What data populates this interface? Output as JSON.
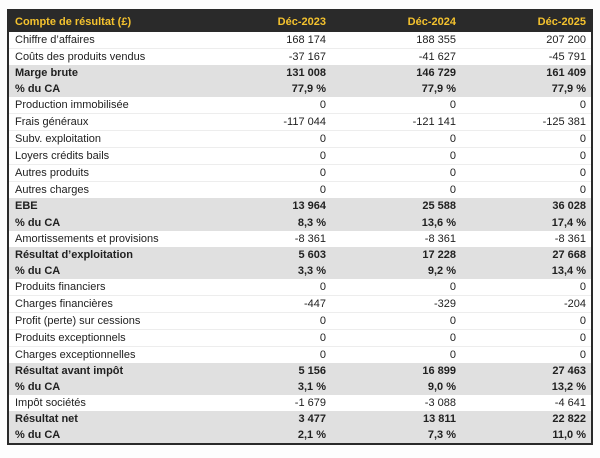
{
  "colors": {
    "header_bg": "#2a2a2a",
    "header_text": "#f4c22e",
    "band_bg": "#e0e0e0",
    "row_separator": "#ededed",
    "body_text": "#212121",
    "table_border": "#2a2a2a",
    "page_bg": "#fdfdfd"
  },
  "chart_data": {
    "type": "table",
    "title": "Compte de résultat (£)",
    "columns": [
      "Déc-2023",
      "Déc-2024",
      "Déc-2025"
    ],
    "rows": [
      {
        "label": "Chiffre d’affaires",
        "values": [
          "168 174",
          "188 355",
          "207 200"
        ],
        "emphasis": false
      },
      {
        "label": "Coûts des produits vendus",
        "values": [
          "-37 167",
          "-41 627",
          "-45 791"
        ],
        "emphasis": false
      },
      {
        "label": "Marge brute",
        "values": [
          "131 008",
          "146 729",
          "161 409"
        ],
        "emphasis": true
      },
      {
        "label": "% du CA",
        "values": [
          "77,9 %",
          "77,9 %",
          "77,9 %"
        ],
        "emphasis": true
      },
      {
        "label": "Production immobilisée",
        "values": [
          "0",
          "0",
          "0"
        ],
        "emphasis": false
      },
      {
        "label": "Frais généraux",
        "values": [
          "-117 044",
          "-121 141",
          "-125 381"
        ],
        "emphasis": false
      },
      {
        "label": "Subv. exploitation",
        "values": [
          "0",
          "0",
          "0"
        ],
        "emphasis": false
      },
      {
        "label": "Loyers crédits bails",
        "values": [
          "0",
          "0",
          "0"
        ],
        "emphasis": false
      },
      {
        "label": "Autres produits",
        "values": [
          "0",
          "0",
          "0"
        ],
        "emphasis": false
      },
      {
        "label": "Autres charges",
        "values": [
          "0",
          "0",
          "0"
        ],
        "emphasis": false
      },
      {
        "label": "EBE",
        "values": [
          "13 964",
          "25 588",
          "36 028"
        ],
        "emphasis": true
      },
      {
        "label": "% du CA",
        "values": [
          "8,3 %",
          "13,6 %",
          "17,4 %"
        ],
        "emphasis": true
      },
      {
        "label": "Amortissements et provisions",
        "values": [
          "-8 361",
          "-8 361",
          "-8 361"
        ],
        "emphasis": false
      },
      {
        "label": "Résultat d’exploitation",
        "values": [
          "5 603",
          "17 228",
          "27 668"
        ],
        "emphasis": true
      },
      {
        "label": "% du CA",
        "values": [
          "3,3 %",
          "9,2 %",
          "13,4 %"
        ],
        "emphasis": true
      },
      {
        "label": "Produits financiers",
        "values": [
          "0",
          "0",
          "0"
        ],
        "emphasis": false
      },
      {
        "label": "Charges financières",
        "values": [
          "-447",
          "-329",
          "-204"
        ],
        "emphasis": false
      },
      {
        "label": "Profit (perte) sur cessions",
        "values": [
          "0",
          "0",
          "0"
        ],
        "emphasis": false
      },
      {
        "label": "Produits exceptionnels",
        "values": [
          "0",
          "0",
          "0"
        ],
        "emphasis": false
      },
      {
        "label": "Charges exceptionnelles",
        "values": [
          "0",
          "0",
          "0"
        ],
        "emphasis": false
      },
      {
        "label": "Résultat avant impôt",
        "values": [
          "5 156",
          "16 899",
          "27 463"
        ],
        "emphasis": true
      },
      {
        "label": "% du CA",
        "values": [
          "3,1 %",
          "9,0 %",
          "13,2 %"
        ],
        "emphasis": true
      },
      {
        "label": "Impôt sociétés",
        "values": [
          "-1 679",
          "-3 088",
          "-4 641"
        ],
        "emphasis": false
      },
      {
        "label": "Résultat net",
        "values": [
          "3 477",
          "13 811",
          "22 822"
        ],
        "emphasis": true
      },
      {
        "label": "% du CA",
        "values": [
          "2,1 %",
          "7,3 %",
          "11,0 %"
        ],
        "emphasis": true
      }
    ]
  }
}
